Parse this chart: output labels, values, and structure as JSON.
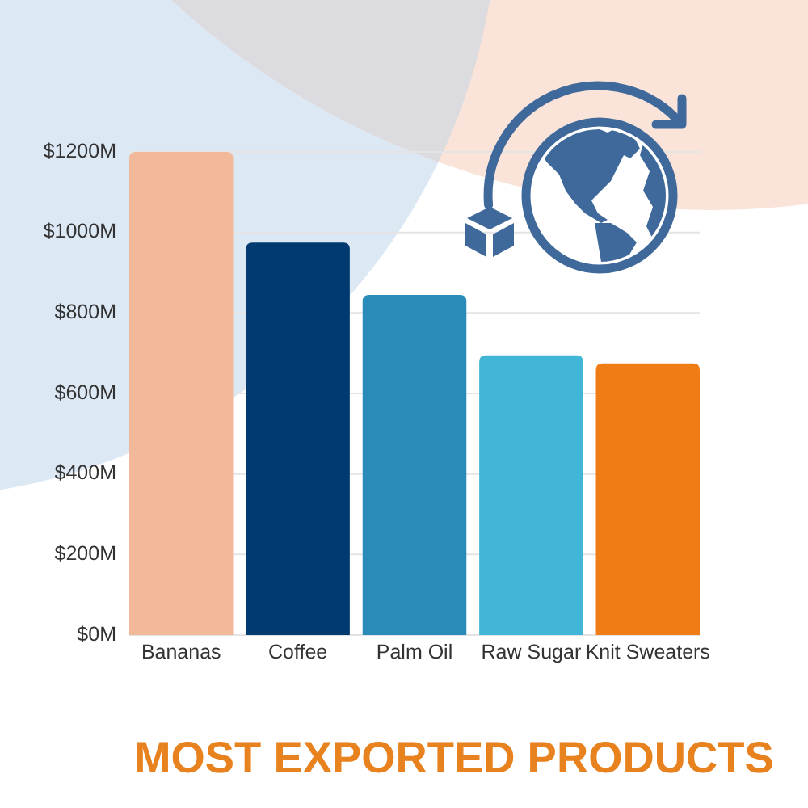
{
  "chart_data": {
    "type": "bar",
    "title": "MOST EXPORTED PRODUCTS",
    "categories": [
      "Bananas",
      "Coffee",
      "Palm Oil",
      "Raw Sugar",
      "Knit Sweaters"
    ],
    "values": [
      1200,
      975,
      845,
      695,
      675
    ],
    "colors": [
      "#f2b89a",
      "#003a70",
      "#2a8ab8",
      "#41b6d6",
      "#f07c16"
    ],
    "ylim": [
      0,
      1200
    ],
    "yticks": [
      {
        "value": 0,
        "label": "$0M"
      },
      {
        "value": 200,
        "label": "$200M"
      },
      {
        "value": 400,
        "label": "$400M"
      },
      {
        "value": 600,
        "label": "$600M"
      },
      {
        "value": 800,
        "label": "$800M"
      },
      {
        "value": 1000,
        "label": "$1000M"
      },
      {
        "value": 1200,
        "label": "$1200M"
      }
    ],
    "grid": "y"
  }
}
